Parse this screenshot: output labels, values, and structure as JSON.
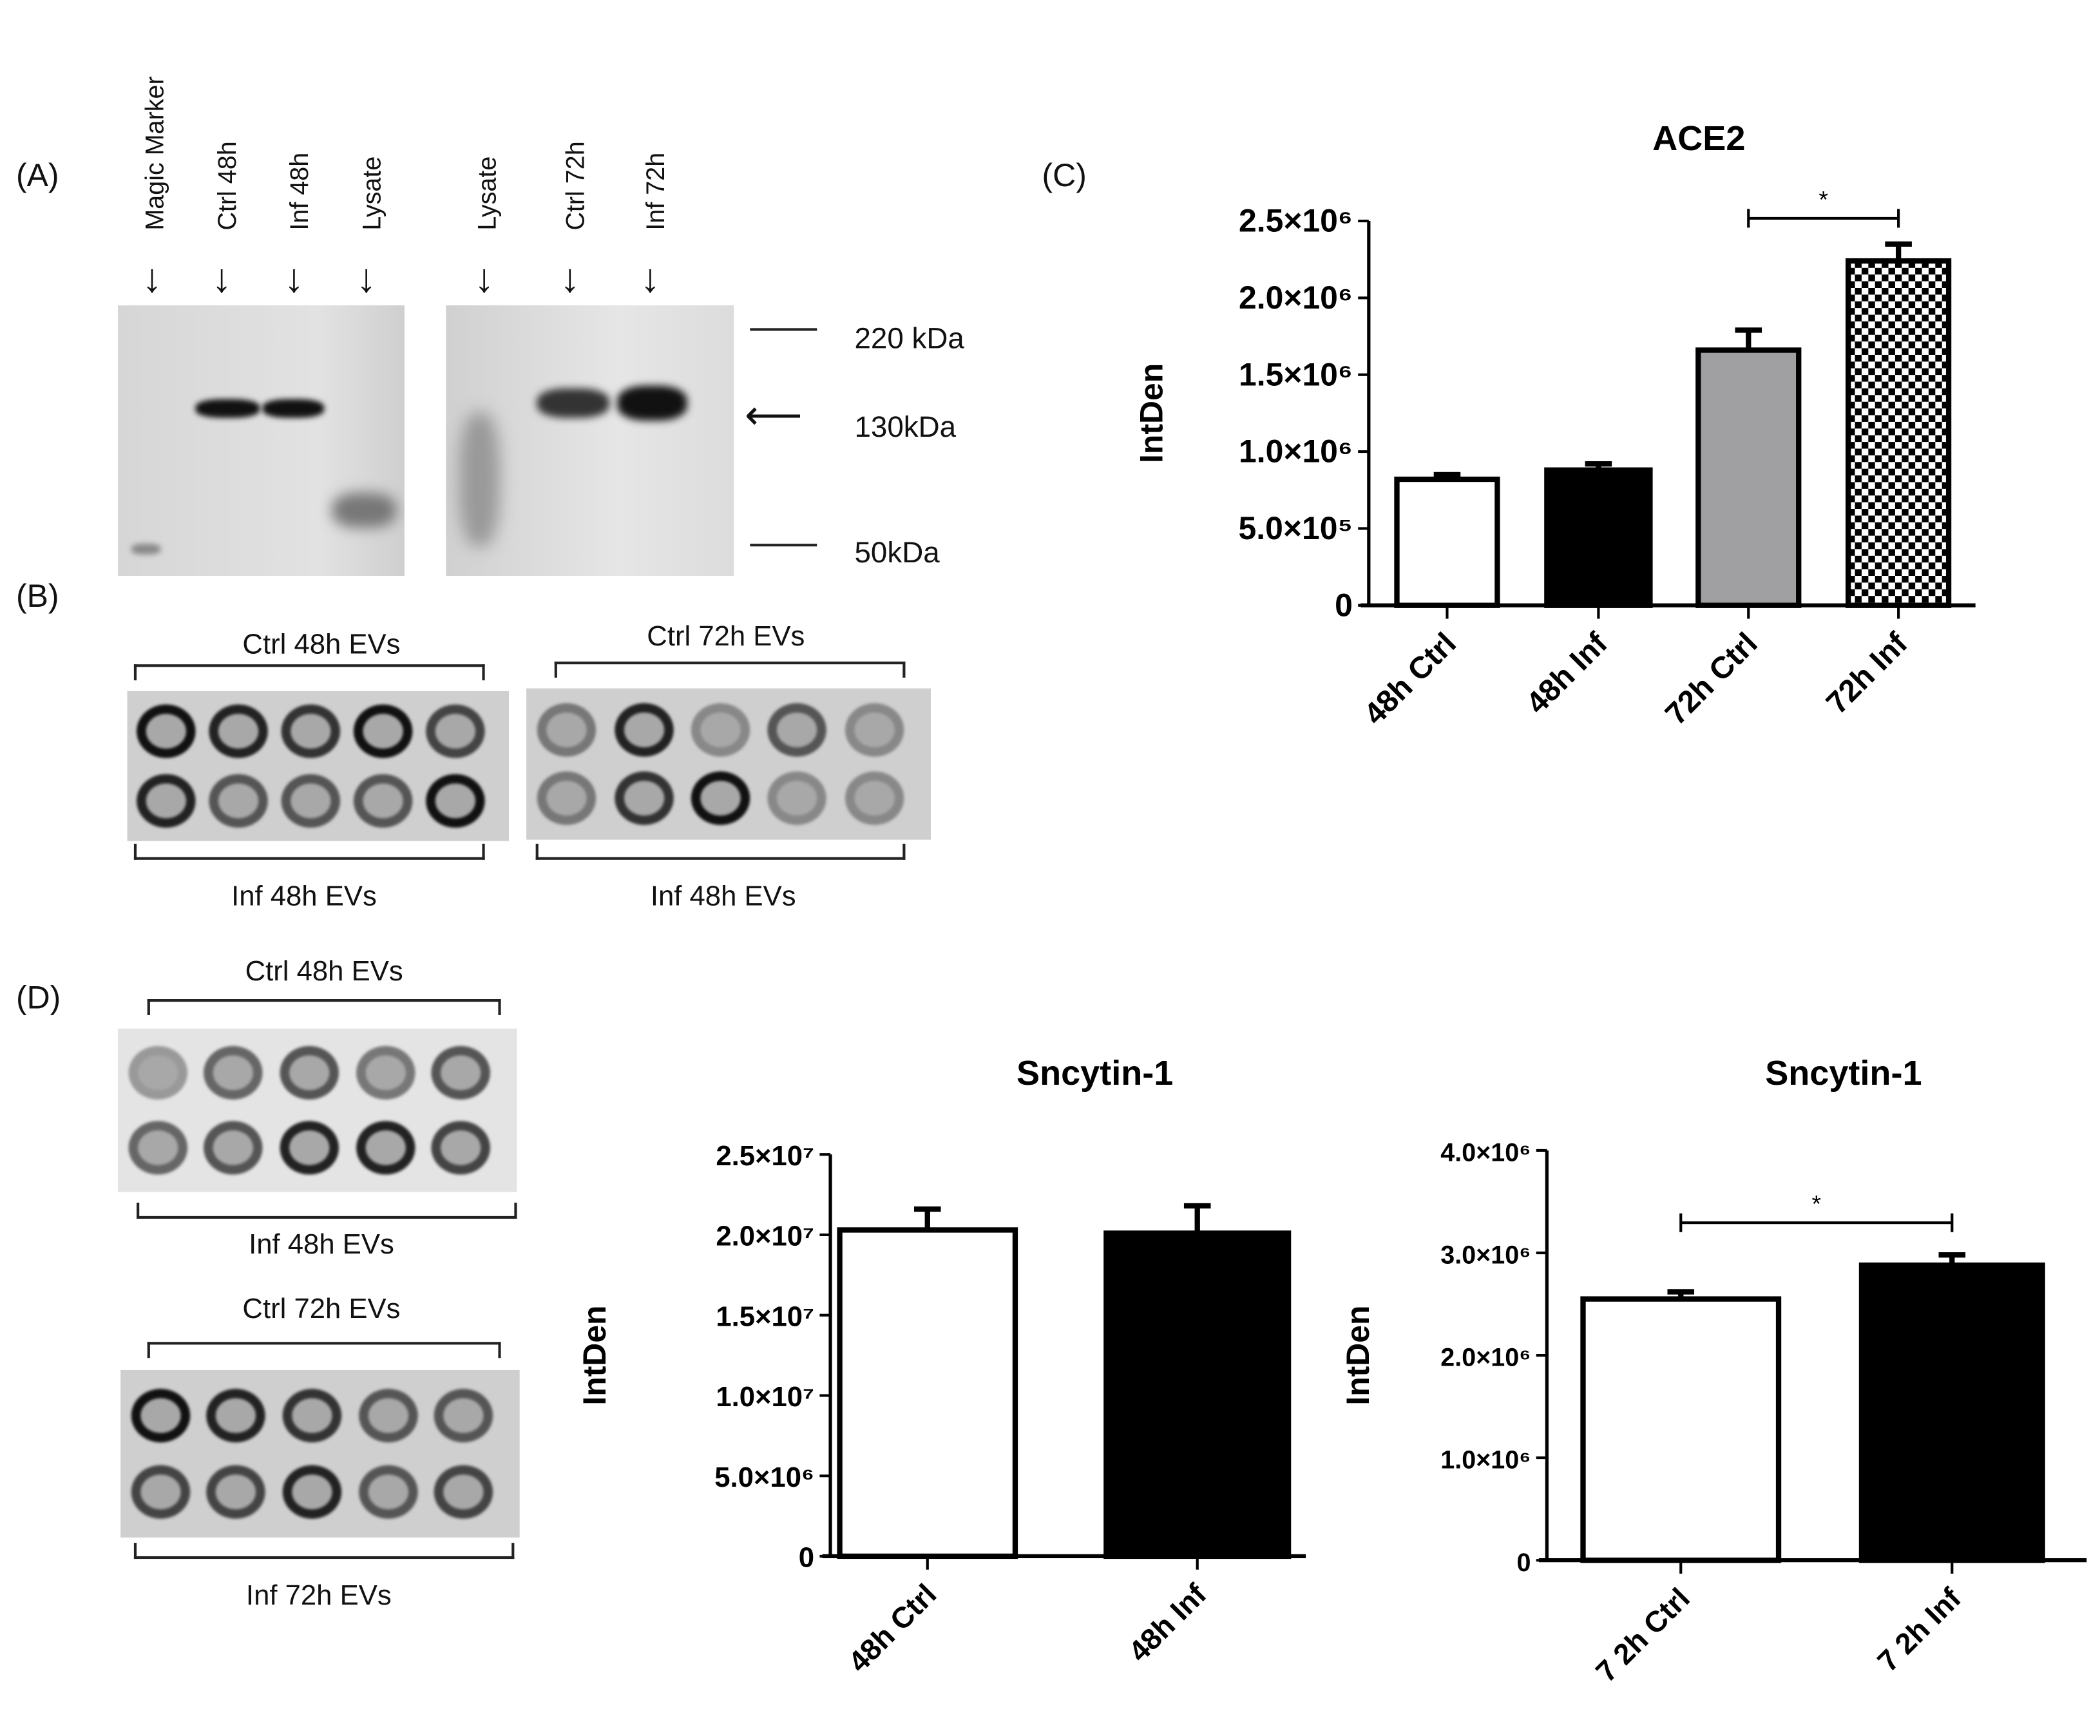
{
  "panels": {
    "A": "(A)",
    "B": "(B)",
    "C": "(C)",
    "D": "(D)"
  },
  "western_blot": {
    "left_lanes": [
      "Magic Marker",
      "Ctrl 48h",
      "Inf 48h",
      "Lysate"
    ],
    "right_lanes": [
      "Lysate",
      "Ctrl  72h",
      "Inf 72h"
    ],
    "markers": [
      "220 kDa",
      "130kDa",
      "50kDa"
    ]
  },
  "dot_blots_B": {
    "left_top": "Ctrl 48h EVs",
    "left_bottom": "Inf 48h EVs",
    "right_top": "Ctrl 72h EVs",
    "right_bottom": "Inf 48h EVs"
  },
  "dot_blots_D": {
    "upper_top": "Ctrl 48h EVs",
    "upper_bottom": "Inf 48h EVs",
    "lower_top": "Ctrl 72h EVs",
    "lower_bottom": "Inf 72h EVs"
  },
  "chart_data": [
    {
      "type": "bar",
      "title": "ACE2",
      "ylabel": "IntDen",
      "categories": [
        "48h Ctrl",
        "48h Inf",
        "72h Ctrl",
        "72h Inf"
      ],
      "values": [
        820000,
        880000,
        1660000,
        2240000
      ],
      "error_upper": [
        850000,
        920000,
        1790000,
        2350000
      ],
      "fills": [
        "#ffffff",
        "#000000",
        "#a0a0a2",
        "checker"
      ],
      "ylim": [
        0,
        2500000
      ],
      "yticks": [
        0,
        500000,
        1000000,
        1500000,
        2000000,
        2500000
      ],
      "ytick_labels": [
        "0",
        "5.0×10⁵",
        "1.0×10⁶",
        "1.5×10⁶",
        "2.0×10⁶",
        "2.5×10⁶"
      ],
      "significance": {
        "between": [
          "72h Ctrl",
          "72h Inf"
        ],
        "label": "*"
      }
    },
    {
      "type": "bar",
      "title": "Sncytin-1",
      "ylabel": "IntDen",
      "categories": [
        "48h  Ctrl",
        "48h Inf"
      ],
      "values": [
        20300000,
        20100000
      ],
      "error_upper": [
        21600000,
        21800000
      ],
      "fills": [
        "#ffffff",
        "#000000"
      ],
      "ylim": [
        0,
        25000000
      ],
      "yticks": [
        0,
        5000000,
        10000000,
        15000000,
        20000000,
        25000000
      ],
      "ytick_labels": [
        "0",
        "5.0×10⁶",
        "1.0×10⁷",
        "1.5×10⁷",
        "2.0×10⁷",
        "2.5×10⁷"
      ]
    },
    {
      "type": "bar",
      "title": "Sncytin-1",
      "ylabel": "IntDen",
      "categories": [
        "7 2h  Ctrl",
        "7 2h Inf"
      ],
      "values": [
        2550000,
        2880000
      ],
      "error_upper": [
        2620000,
        2980000
      ],
      "fills": [
        "#ffffff",
        "#000000"
      ],
      "ylim": [
        0,
        4000000
      ],
      "yticks": [
        0,
        1000000,
        2000000,
        3000000,
        4000000
      ],
      "ytick_labels": [
        "0",
        "1.0×10⁶",
        "2.0×10⁶",
        "3.0×10⁶",
        "4.0×10⁶"
      ],
      "significance": {
        "between": [
          "7 2h  Ctrl",
          "7 2h Inf"
        ],
        "label": "*"
      }
    }
  ]
}
